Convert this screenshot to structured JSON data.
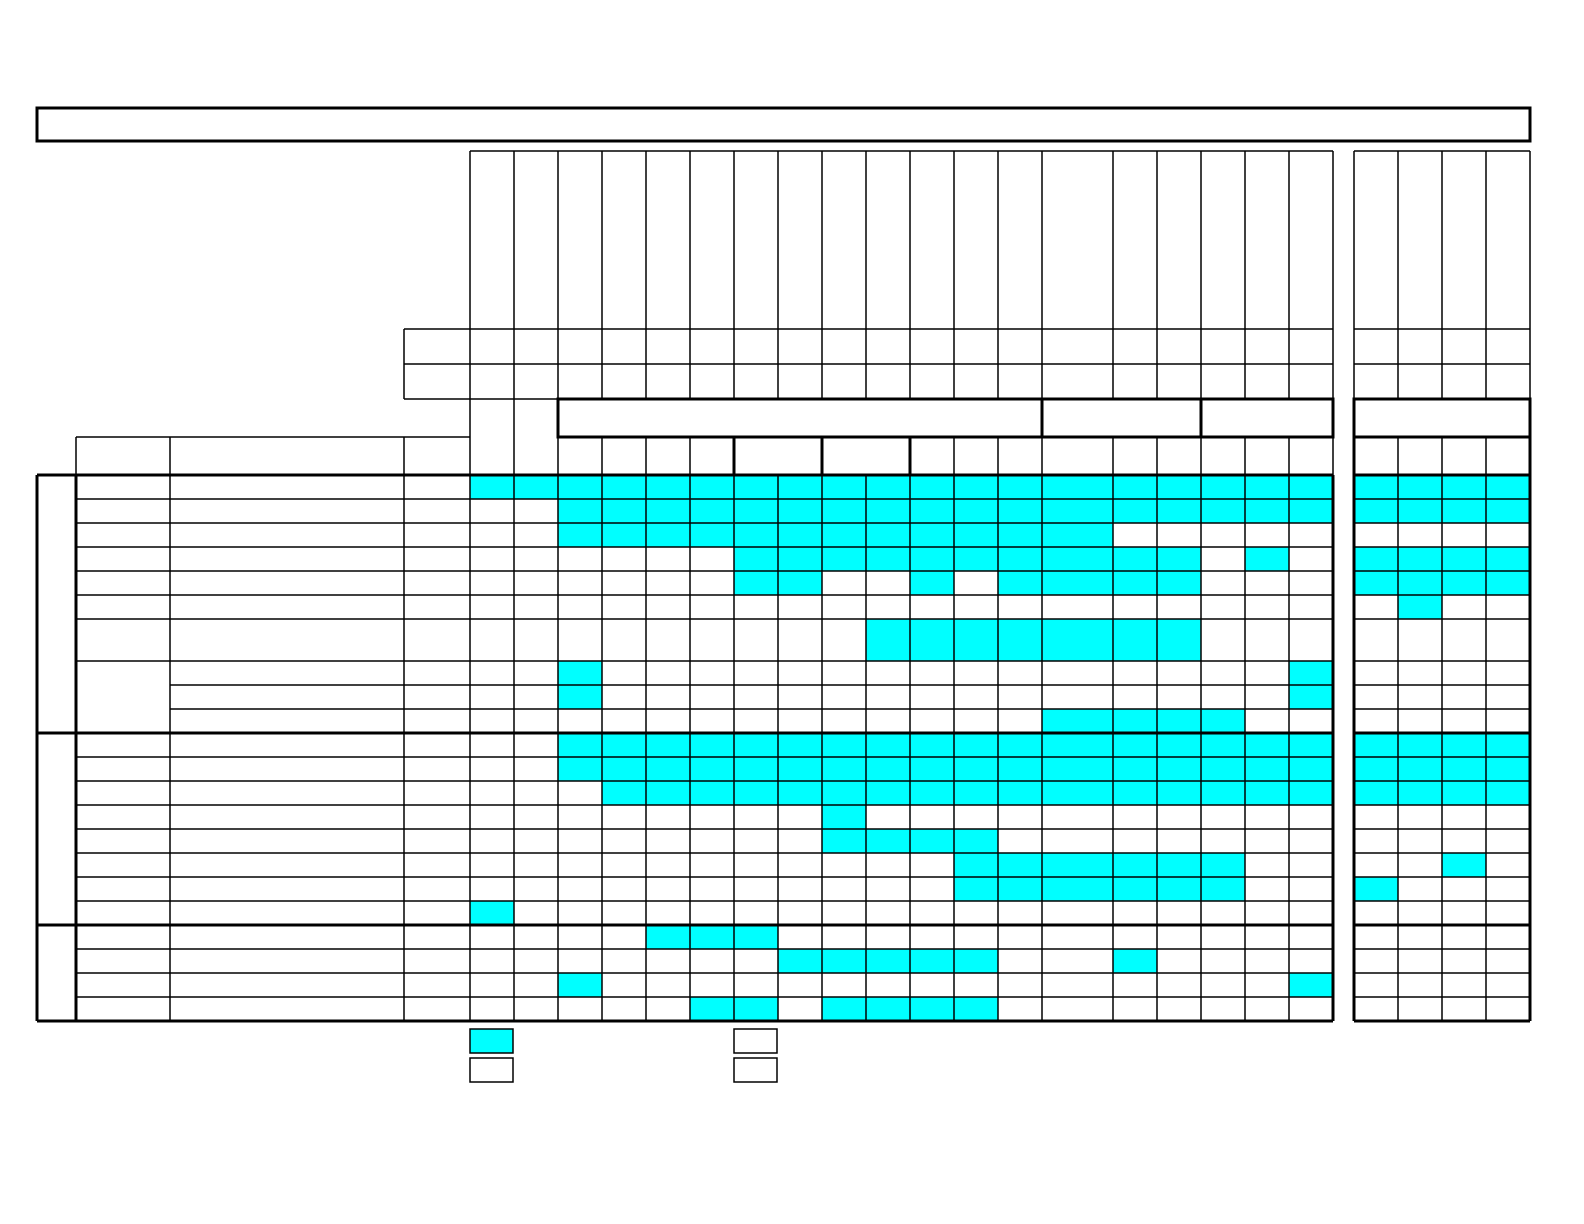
{
  "colors": {
    "highlight": "#00ffff",
    "empty": "#ffffff",
    "border": "#000000"
  },
  "grid": {
    "main_columns": 19,
    "side_columns": 4,
    "rows": [
      {
        "main": "1111111111111111111",
        "side": "1111"
      },
      {
        "main": "0011111111111111111",
        "side": "1111"
      },
      {
        "main": "0011111111111100000",
        "side": "0000"
      },
      {
        "main": "0000001111111111010",
        "side": "1111"
      },
      {
        "main": "0000001100101111000",
        "side": "1111"
      },
      {
        "main": "0000000000000000000",
        "side": "0100"
      },
      {
        "main": "0000000001111111000",
        "side": "0000"
      },
      {
        "main": "0010000000000000001",
        "side": "0000"
      },
      {
        "main": "0010000000000000001",
        "side": "0000"
      },
      {
        "main": "0000000000000111100",
        "side": "0000"
      },
      {
        "main": "0011111111111111111",
        "side": "1111"
      },
      {
        "main": "0011111111111111111",
        "side": "1111"
      },
      {
        "main": "0001111111111111111",
        "side": "1111"
      },
      {
        "main": "0000000010000000000",
        "side": "0000"
      },
      {
        "main": "0000000011110000000",
        "side": "0000"
      },
      {
        "main": "0000000000011111100",
        "side": "0010"
      },
      {
        "main": "0000000000011111100",
        "side": "1000"
      },
      {
        "main": "1000000000000000000",
        "side": "0000"
      },
      {
        "main": "0000111000000000000",
        "side": "0000"
      },
      {
        "main": "0000000111110010000",
        "side": "0000"
      },
      {
        "main": "0010000000000000001",
        "side": "0000"
      },
      {
        "main": "0000011011110000000",
        "side": "0000"
      }
    ]
  },
  "legend": [
    {
      "swatch": "highlight"
    },
    {
      "swatch": "empty"
    },
    {
      "swatch": "empty"
    },
    {
      "swatch": "empty"
    }
  ]
}
